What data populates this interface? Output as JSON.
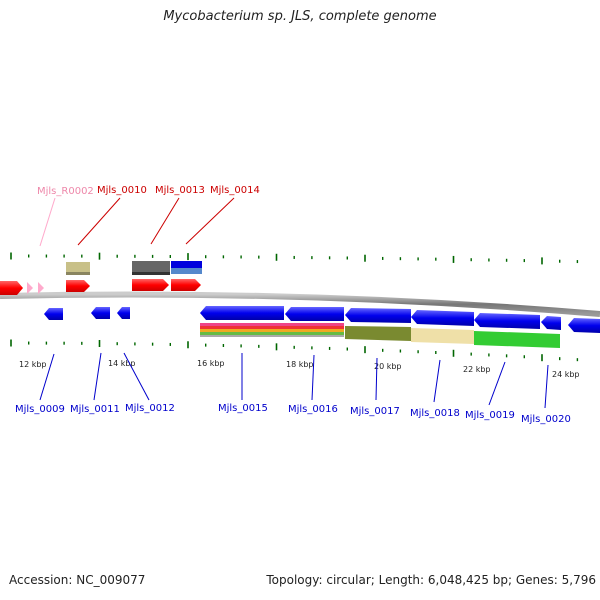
{
  "title": "Mycobacterium sp. JLS, complete genome",
  "footer": {
    "accession": "Accession: NC_009077",
    "summary": "Topology: circular; Length: 6,048,425 bp; Genes: 5,796"
  },
  "colors": {
    "backbone": "#888888",
    "forward_gene": "#ff0000",
    "reverse_gene": "#0000ee",
    "rna": "#ffaacc",
    "tick": "#006600",
    "top_label": "#cc0000",
    "top_rna_label": "#ee88aa",
    "bottom_label": "#0000cc"
  },
  "scale": {
    "labels": [
      "12 kbp",
      "14 kbp",
      "16 kbp",
      "18 kbp",
      "20 kbp",
      "22 kbp",
      "24 kbp"
    ]
  },
  "top_labels": [
    {
      "text": "Mjls_R0002",
      "kind": "rna"
    },
    {
      "text": "Mjls_0010",
      "kind": "gene"
    },
    {
      "text": "Mjls_0013",
      "kind": "gene"
    },
    {
      "text": "Mjls_0014",
      "kind": "gene"
    }
  ],
  "bottom_labels": [
    "Mjls_0009",
    "Mjls_0011",
    "Mjls_0012",
    "Mjls_0015",
    "Mjls_0016",
    "Mjls_0017",
    "Mjls_0018",
    "Mjls_0019",
    "Mjls_0020"
  ]
}
